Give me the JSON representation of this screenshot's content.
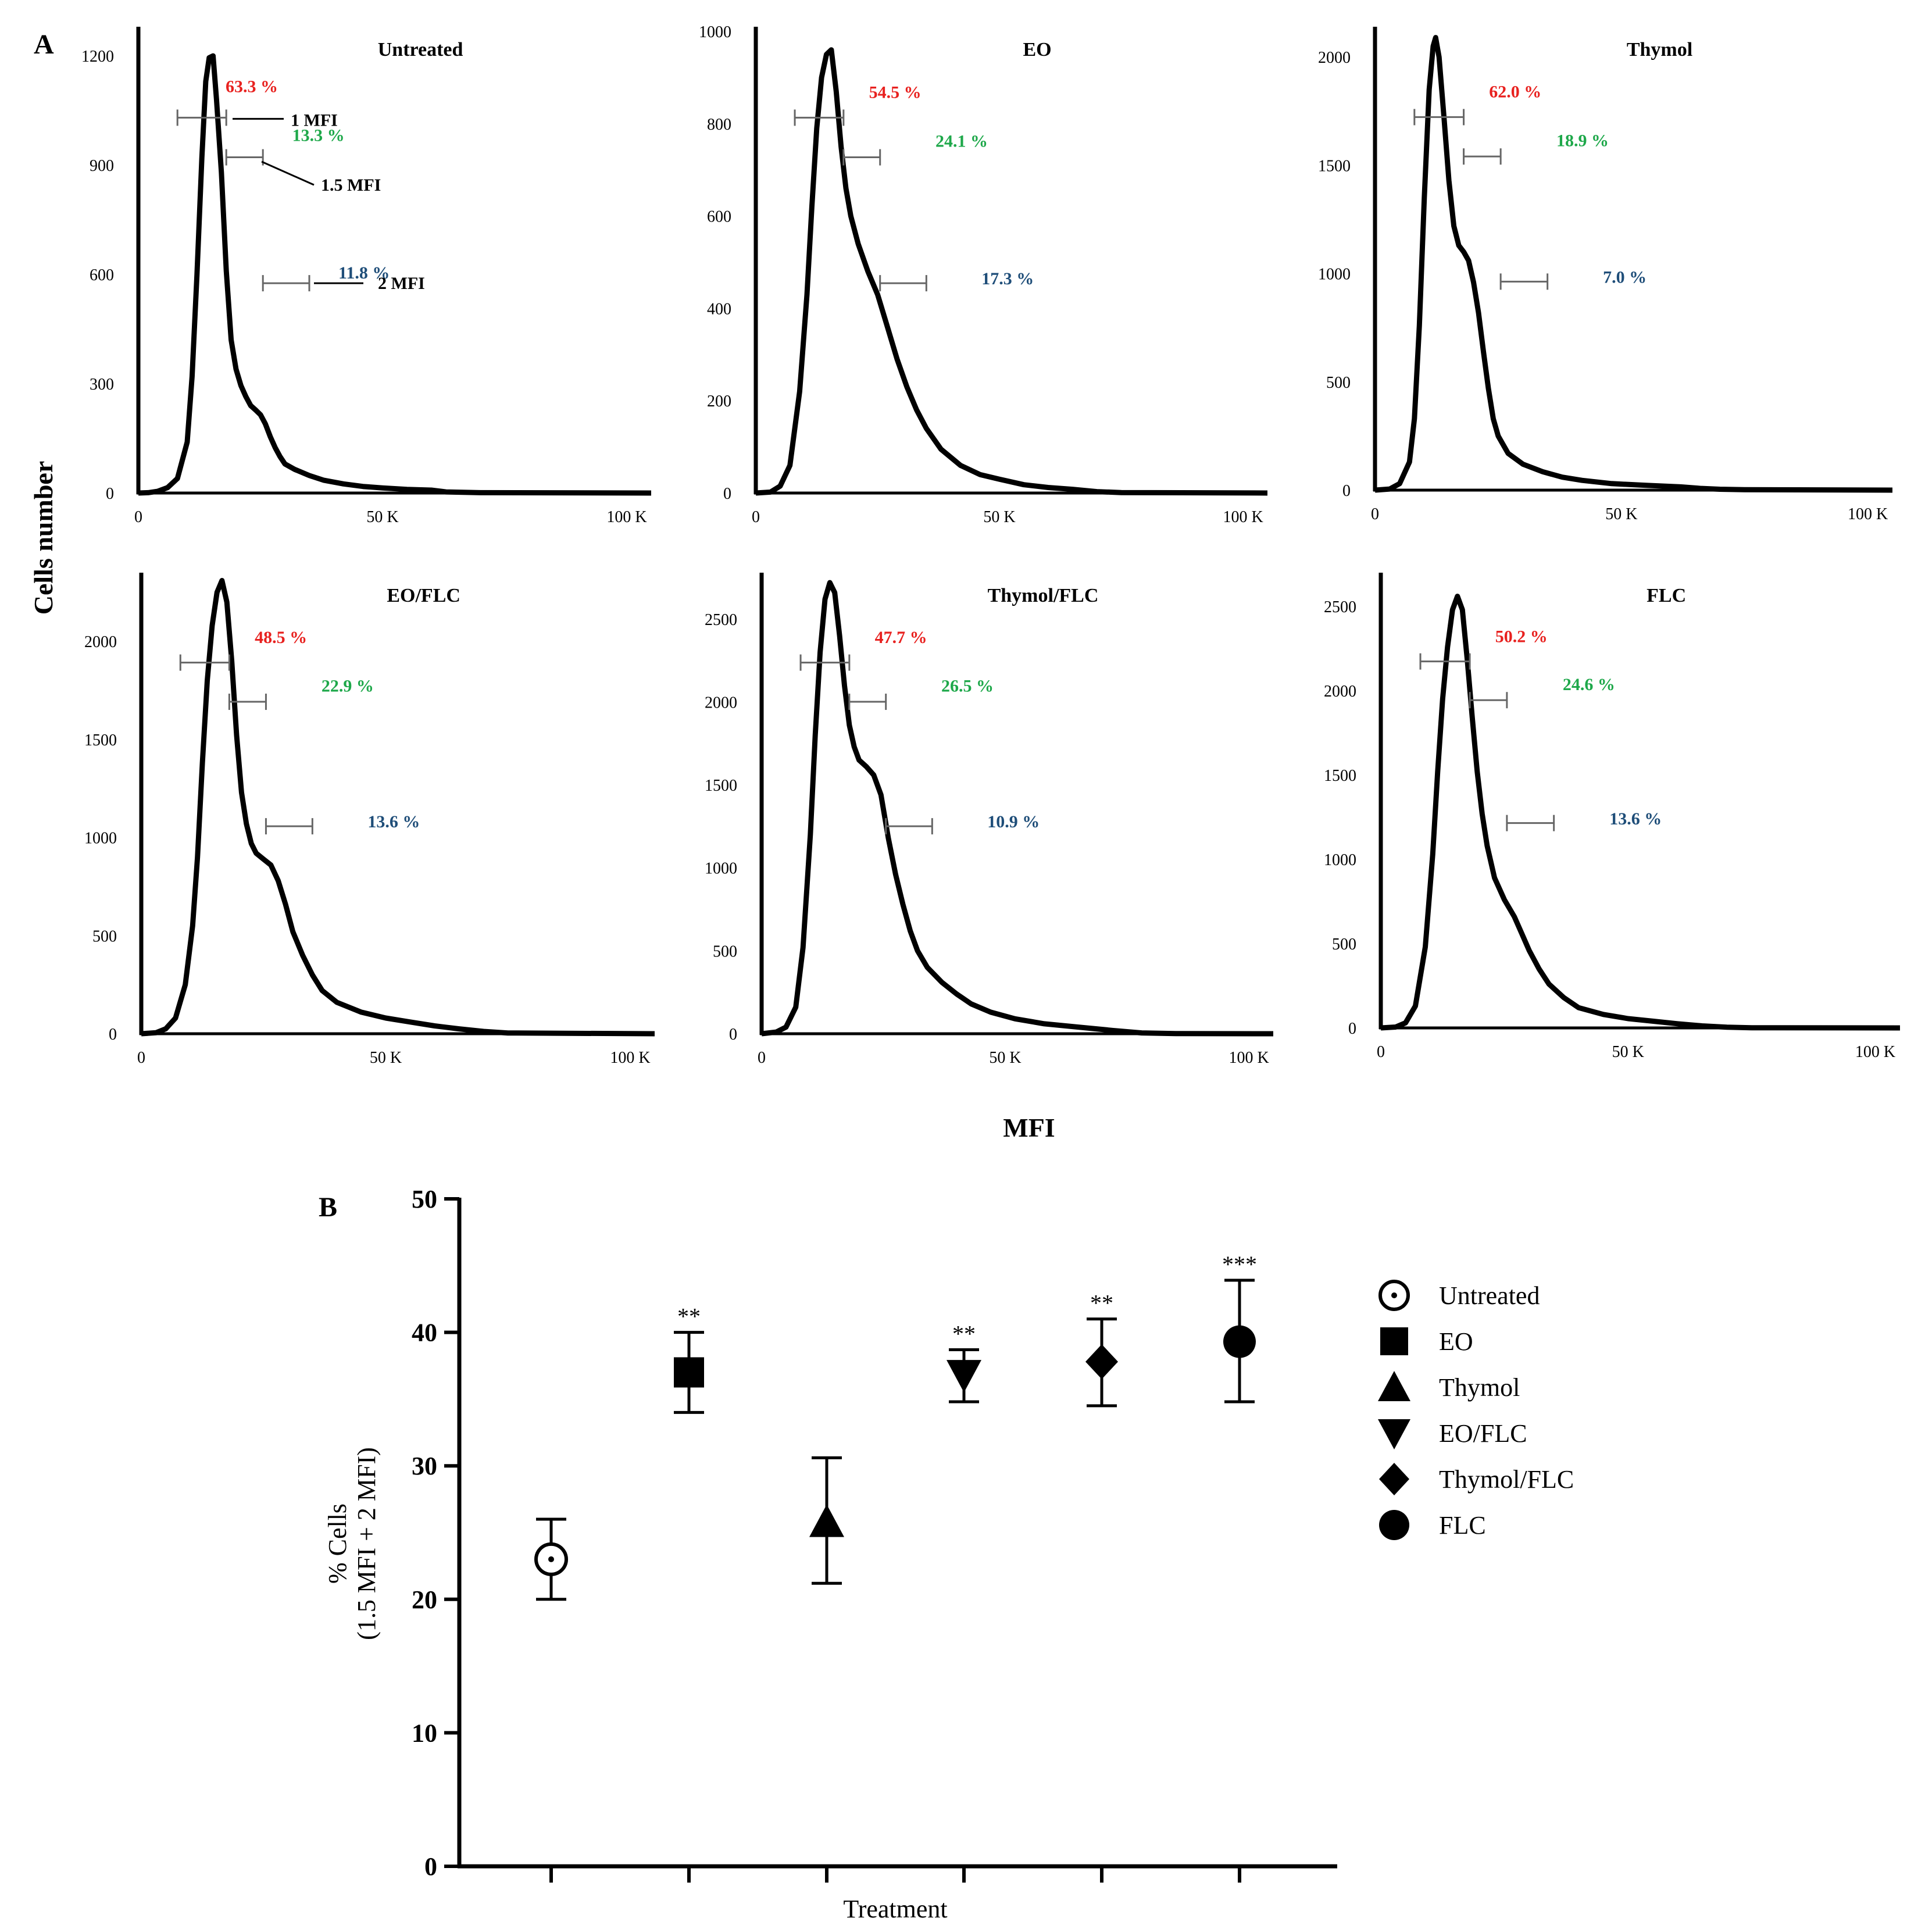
{
  "chart_data": [
    {
      "type": "line",
      "panel_letter": "A",
      "ylabel": "Cells number",
      "xlabel": "MFI",
      "x_ticks": [
        "0",
        "50 K",
        "100 K"
      ],
      "x_range": [
        0,
        105000
      ],
      "colors": {
        "gate1": "#e8211f",
        "gate15": "#1ea84a",
        "gate2": "#1f4e79"
      },
      "gate_labels": [
        "1  MFI",
        "1.5 MFI",
        "2 MFI"
      ],
      "panels": [
        {
          "title": "Untreated",
          "y_ticks": [
            0,
            300,
            600,
            900,
            1200
          ],
          "y_max": 1280,
          "curve": [
            [
              0,
              0
            ],
            [
              2000,
              1
            ],
            [
              4000,
              5
            ],
            [
              6000,
              15
            ],
            [
              8000,
              40
            ],
            [
              10000,
              140
            ],
            [
              11000,
              320
            ],
            [
              12000,
              600
            ],
            [
              13000,
              920
            ],
            [
              13800,
              1130
            ],
            [
              14500,
              1195
            ],
            [
              15300,
              1200
            ],
            [
              16000,
              1080
            ],
            [
              17000,
              880
            ],
            [
              18000,
              610
            ],
            [
              19000,
              420
            ],
            [
              20000,
              340
            ],
            [
              21000,
              295
            ],
            [
              22000,
              265
            ],
            [
              23000,
              240
            ],
            [
              24000,
              228
            ],
            [
              25000,
              215
            ],
            [
              26000,
              190
            ],
            [
              27000,
              155
            ],
            [
              28000,
              125
            ],
            [
              29000,
              100
            ],
            [
              30000,
              80
            ],
            [
              32000,
              65
            ],
            [
              35000,
              48
            ],
            [
              38000,
              35
            ],
            [
              42000,
              25
            ],
            [
              46000,
              18
            ],
            [
              50000,
              14
            ],
            [
              55000,
              10
            ],
            [
              60000,
              8
            ],
            [
              63000,
              3
            ],
            [
              70000,
              1
            ],
            [
              105000,
              0
            ]
          ],
          "gates": {
            "gate1": "63.3 %",
            "gate15": "13.3 %",
            "gate2": "11.8 %"
          }
        },
        {
          "title": "EO",
          "y_ticks": [
            0,
            200,
            400,
            600,
            800,
            1000
          ],
          "y_max": 1010,
          "curve": [
            [
              0,
              0
            ],
            [
              3000,
              2
            ],
            [
              5000,
              15
            ],
            [
              7000,
              60
            ],
            [
              9000,
              220
            ],
            [
              10500,
              430
            ],
            [
              11500,
              620
            ],
            [
              12500,
              790
            ],
            [
              13500,
              900
            ],
            [
              14500,
              950
            ],
            [
              15500,
              960
            ],
            [
              16500,
              870
            ],
            [
              17500,
              750
            ],
            [
              18500,
              660
            ],
            [
              19500,
              600
            ],
            [
              21000,
              540
            ],
            [
              23000,
              480
            ],
            [
              25000,
              430
            ],
            [
              27000,
              360
            ],
            [
              29000,
              290
            ],
            [
              31000,
              230
            ],
            [
              33000,
              180
            ],
            [
              35000,
              140
            ],
            [
              38000,
              95
            ],
            [
              42000,
              60
            ],
            [
              46000,
              40
            ],
            [
              50000,
              30
            ],
            [
              55000,
              18
            ],
            [
              60000,
              12
            ],
            [
              65000,
              8
            ],
            [
              70000,
              3
            ],
            [
              75000,
              1
            ],
            [
              105000,
              0
            ]
          ],
          "gates": {
            "gate1": "54.5 %",
            "gate15": "24.1 %",
            "gate2": "17.3 %"
          }
        },
        {
          "title": "Thymol",
          "y_ticks": [
            0,
            500,
            1000,
            1500,
            2000
          ],
          "y_max": 2140,
          "curve": [
            [
              0,
              0
            ],
            [
              3000,
              5
            ],
            [
              5000,
              30
            ],
            [
              7000,
              130
            ],
            [
              8000,
              330
            ],
            [
              9000,
              760
            ],
            [
              10000,
              1350
            ],
            [
              11000,
              1850
            ],
            [
              11800,
              2050
            ],
            [
              12300,
              2090
            ],
            [
              13000,
              2000
            ],
            [
              14000,
              1720
            ],
            [
              15000,
              1430
            ],
            [
              16000,
              1220
            ],
            [
              17000,
              1130
            ],
            [
              18000,
              1100
            ],
            [
              19000,
              1060
            ],
            [
              20000,
              960
            ],
            [
              21000,
              820
            ],
            [
              22000,
              640
            ],
            [
              23000,
              470
            ],
            [
              24000,
              330
            ],
            [
              25000,
              250
            ],
            [
              27000,
              170
            ],
            [
              30000,
              120
            ],
            [
              34000,
              85
            ],
            [
              38000,
              60
            ],
            [
              42000,
              45
            ],
            [
              48000,
              30
            ],
            [
              55000,
              22
            ],
            [
              62000,
              15
            ],
            [
              66000,
              8
            ],
            [
              70000,
              4
            ],
            [
              75000,
              2
            ],
            [
              105000,
              0
            ]
          ],
          "gates": {
            "gate1": "62.0 %",
            "gate15": "18.9 %",
            "gate2": "7.0 %"
          }
        },
        {
          "title": "EO/FLC",
          "y_ticks": [
            0,
            500,
            1000,
            1500,
            2000
          ],
          "y_max": 2350,
          "curve": [
            [
              0,
              0
            ],
            [
              3000,
              5
            ],
            [
              5000,
              25
            ],
            [
              7000,
              80
            ],
            [
              9000,
              250
            ],
            [
              10500,
              550
            ],
            [
              11500,
              900
            ],
            [
              12500,
              1380
            ],
            [
              13500,
              1800
            ],
            [
              14500,
              2080
            ],
            [
              15500,
              2250
            ],
            [
              16500,
              2310
            ],
            [
              17500,
              2200
            ],
            [
              18500,
              1900
            ],
            [
              19500,
              1520
            ],
            [
              20500,
              1230
            ],
            [
              21500,
              1070
            ],
            [
              22500,
              970
            ],
            [
              23500,
              920
            ],
            [
              25000,
              890
            ],
            [
              26500,
              860
            ],
            [
              28000,
              780
            ],
            [
              29500,
              660
            ],
            [
              31000,
              520
            ],
            [
              33000,
              400
            ],
            [
              35000,
              300
            ],
            [
              37000,
              220
            ],
            [
              40000,
              160
            ],
            [
              45000,
              110
            ],
            [
              50000,
              80
            ],
            [
              55000,
              60
            ],
            [
              60000,
              40
            ],
            [
              65000,
              25
            ],
            [
              70000,
              12
            ],
            [
              75000,
              4
            ],
            [
              105000,
              0
            ]
          ],
          "gates": {
            "gate1": "48.5 %",
            "gate15": "22.9 %",
            "gate2": "13.6 %"
          }
        },
        {
          "title": "Thymol/FLC",
          "y_ticks": [
            0,
            500,
            1000,
            1500,
            2000,
            2500
          ],
          "y_max": 2780,
          "curve": [
            [
              0,
              0
            ],
            [
              3000,
              10
            ],
            [
              5000,
              40
            ],
            [
              7000,
              160
            ],
            [
              8500,
              520
            ],
            [
              10000,
              1200
            ],
            [
              11000,
              1800
            ],
            [
              12000,
              2300
            ],
            [
              13000,
              2620
            ],
            [
              14000,
              2720
            ],
            [
              15000,
              2660
            ],
            [
              16000,
              2400
            ],
            [
              17000,
              2100
            ],
            [
              18000,
              1860
            ],
            [
              19000,
              1730
            ],
            [
              20000,
              1650
            ],
            [
              21500,
              1610
            ],
            [
              23000,
              1560
            ],
            [
              24500,
              1440
            ],
            [
              26000,
              1180
            ],
            [
              27500,
              960
            ],
            [
              29000,
              780
            ],
            [
              30500,
              620
            ],
            [
              32000,
              500
            ],
            [
              34000,
              400
            ],
            [
              37000,
              310
            ],
            [
              40000,
              240
            ],
            [
              43000,
              180
            ],
            [
              47000,
              130
            ],
            [
              52000,
              90
            ],
            [
              58000,
              60
            ],
            [
              65000,
              40
            ],
            [
              72000,
              20
            ],
            [
              78000,
              5
            ],
            [
              85000,
              1
            ],
            [
              105000,
              0
            ]
          ],
          "gates": {
            "gate1": "47.7 %",
            "gate15": "26.5 %",
            "gate2": "10.9 %"
          }
        },
        {
          "title": "FLC",
          "y_ticks": [
            0,
            500,
            1000,
            1500,
            2000,
            2500
          ],
          "y_max": 2700,
          "curve": [
            [
              0,
              0
            ],
            [
              3000,
              5
            ],
            [
              5000,
              30
            ],
            [
              7000,
              130
            ],
            [
              9000,
              480
            ],
            [
              10500,
              1030
            ],
            [
              11500,
              1520
            ],
            [
              12500,
              1950
            ],
            [
              13500,
              2260
            ],
            [
              14500,
              2480
            ],
            [
              15500,
              2560
            ],
            [
              16500,
              2480
            ],
            [
              17500,
              2180
            ],
            [
              18500,
              1840
            ],
            [
              19500,
              1520
            ],
            [
              20500,
              1270
            ],
            [
              21500,
              1080
            ],
            [
              23000,
              890
            ],
            [
              25000,
              760
            ],
            [
              27000,
              660
            ],
            [
              28500,
              560
            ],
            [
              30000,
              460
            ],
            [
              32000,
              350
            ],
            [
              34000,
              260
            ],
            [
              37000,
              180
            ],
            [
              40000,
              120
            ],
            [
              45000,
              80
            ],
            [
              50000,
              55
            ],
            [
              55000,
              40
            ],
            [
              60000,
              25
            ],
            [
              65000,
              12
            ],
            [
              70000,
              4
            ],
            [
              75000,
              1
            ],
            [
              105000,
              0
            ]
          ],
          "gates": {
            "gate1": "50.2 %",
            "gate15": "24.6 %",
            "gate2": "13.6 %"
          }
        }
      ]
    },
    {
      "type": "scatter",
      "panel_letter": "B",
      "xlabel": "Treatment",
      "ylabel_line1": "% Cells",
      "ylabel_line2": "(1.5 MFI + 2 MFI)",
      "ylim": [
        0,
        50
      ],
      "y_ticks": [
        0,
        10,
        20,
        30,
        40,
        50
      ],
      "points": [
        {
          "name": "Untreated",
          "marker": "circle-dot",
          "mean": 23,
          "low": 20,
          "high": 26,
          "sig": ""
        },
        {
          "name": "EO",
          "marker": "square",
          "mean": 37,
          "low": 34,
          "high": 40,
          "sig": "**"
        },
        {
          "name": "Thymol",
          "marker": "triangle-up",
          "mean": 25.8,
          "low": 21.2,
          "high": 30.6,
          "sig": ""
        },
        {
          "name": "EO/FLC",
          "marker": "triangle-down",
          "mean": 36.8,
          "low": 34.8,
          "high": 38.7,
          "sig": "**"
        },
        {
          "name": "Thymol/FLC",
          "marker": "diamond",
          "mean": 37.8,
          "low": 34.5,
          "high": 41,
          "sig": "**"
        },
        {
          "name": "FLC",
          "marker": "circle",
          "mean": 39.3,
          "low": 34.8,
          "high": 43.9,
          "sig": "***"
        }
      ]
    }
  ]
}
